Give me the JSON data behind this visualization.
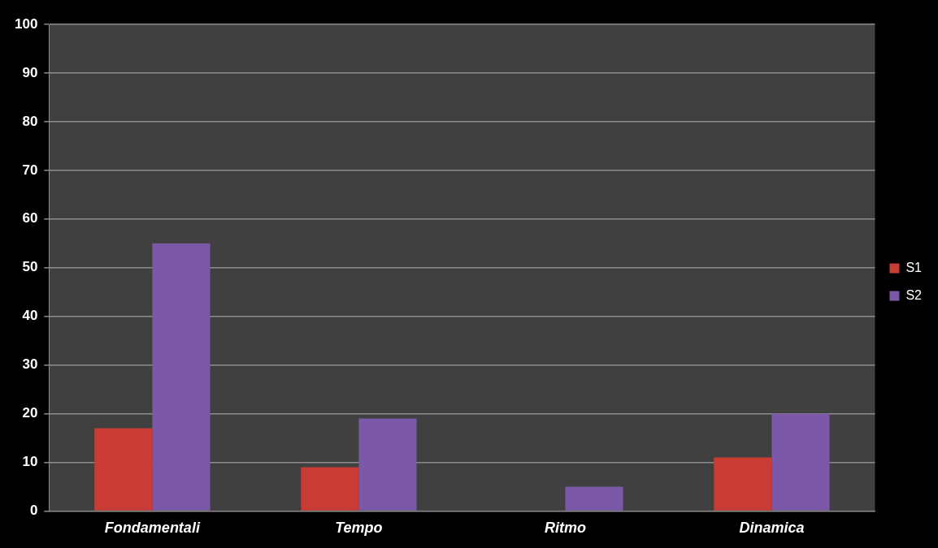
{
  "chart_data": {
    "type": "bar",
    "categories": [
      "Fondamentali",
      "Tempo",
      "Ritmo",
      "Dinamica"
    ],
    "series": [
      {
        "name": "S1",
        "color": "#c93c36",
        "values": [
          17,
          9,
          0,
          11
        ]
      },
      {
        "name": "S2",
        "color": "#7b58a8",
        "values": [
          55,
          19,
          5,
          20
        ]
      }
    ],
    "ylim": [
      0,
      100
    ],
    "yticks": [
      0,
      10,
      20,
      30,
      40,
      50,
      60,
      70,
      80,
      90,
      100
    ],
    "grid": "y",
    "legend": "right"
  }
}
